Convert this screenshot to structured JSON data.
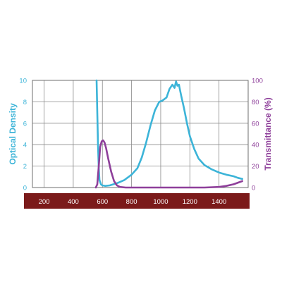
{
  "chart_data": {
    "type": "line",
    "x_axis": {
      "label": "",
      "range": [
        120,
        1600
      ],
      "ticks": [
        200,
        400,
        600,
        800,
        1000,
        1200,
        1400
      ],
      "tick_labels": [
        "200",
        "400",
        "600",
        "800",
        "1000",
        "1200",
        "1400"
      ],
      "band_color": "#7b1a1a",
      "tick_label_color": "#ffffff"
    },
    "y_left": {
      "label": "Optical Density",
      "range": [
        0,
        10
      ],
      "ticks": [
        0,
        2,
        4,
        6,
        8,
        10
      ],
      "tick_labels": [
        "0",
        "2",
        "4",
        "6",
        "8",
        "10"
      ],
      "color": "#3cb4d8"
    },
    "y_right": {
      "label": "Transmittance (%)",
      "range": [
        0,
        100
      ],
      "ticks": [
        0,
        20,
        40,
        60,
        80,
        100
      ],
      "tick_labels": [
        "0",
        "20",
        "40",
        "60",
        "80",
        "100"
      ],
      "color": "#8e3f9a"
    },
    "grid": true,
    "series": [
      {
        "axis": "left",
        "color": "#3cb4d8",
        "points": [
          [
            560,
            10
          ],
          [
            565,
            7.0
          ],
          [
            570,
            4.0
          ],
          [
            575,
            1.8
          ],
          [
            580,
            0.7
          ],
          [
            590,
            0.3
          ],
          [
            600,
            0.2
          ],
          [
            620,
            0.15
          ],
          [
            650,
            0.2
          ],
          [
            700,
            0.4
          ],
          [
            750,
            0.7
          ],
          [
            800,
            1.2
          ],
          [
            840,
            1.8
          ],
          [
            870,
            2.8
          ],
          [
            900,
            4.2
          ],
          [
            930,
            5.8
          ],
          [
            960,
            7.2
          ],
          [
            990,
            8.0
          ],
          [
            1010,
            8.1
          ],
          [
            1040,
            8.4
          ],
          [
            1060,
            9.2
          ],
          [
            1080,
            9.6
          ],
          [
            1095,
            9.3
          ],
          [
            1105,
            9.9
          ],
          [
            1115,
            9.5
          ],
          [
            1125,
            9.6
          ],
          [
            1140,
            8.6
          ],
          [
            1160,
            7.4
          ],
          [
            1180,
            6.0
          ],
          [
            1200,
            4.8
          ],
          [
            1230,
            3.6
          ],
          [
            1260,
            2.7
          ],
          [
            1300,
            2.1
          ],
          [
            1350,
            1.7
          ],
          [
            1400,
            1.4
          ],
          [
            1450,
            1.2
          ],
          [
            1500,
            1.05
          ],
          [
            1530,
            0.9
          ],
          [
            1560,
            0.8
          ]
        ]
      },
      {
        "axis": "right",
        "color": "#8e3f9a",
        "points": [
          [
            555,
            0
          ],
          [
            565,
            3
          ],
          [
            575,
            20
          ],
          [
            585,
            38
          ],
          [
            595,
            43
          ],
          [
            605,
            44
          ],
          [
            615,
            42
          ],
          [
            625,
            37
          ],
          [
            640,
            27
          ],
          [
            660,
            15
          ],
          [
            680,
            6
          ],
          [
            700,
            2
          ],
          [
            720,
            0.5
          ],
          [
            760,
            0
          ],
          [
            1300,
            0
          ],
          [
            1400,
            0.5
          ],
          [
            1450,
            1.5
          ],
          [
            1500,
            3
          ],
          [
            1540,
            5
          ],
          [
            1560,
            6
          ]
        ]
      }
    ]
  }
}
